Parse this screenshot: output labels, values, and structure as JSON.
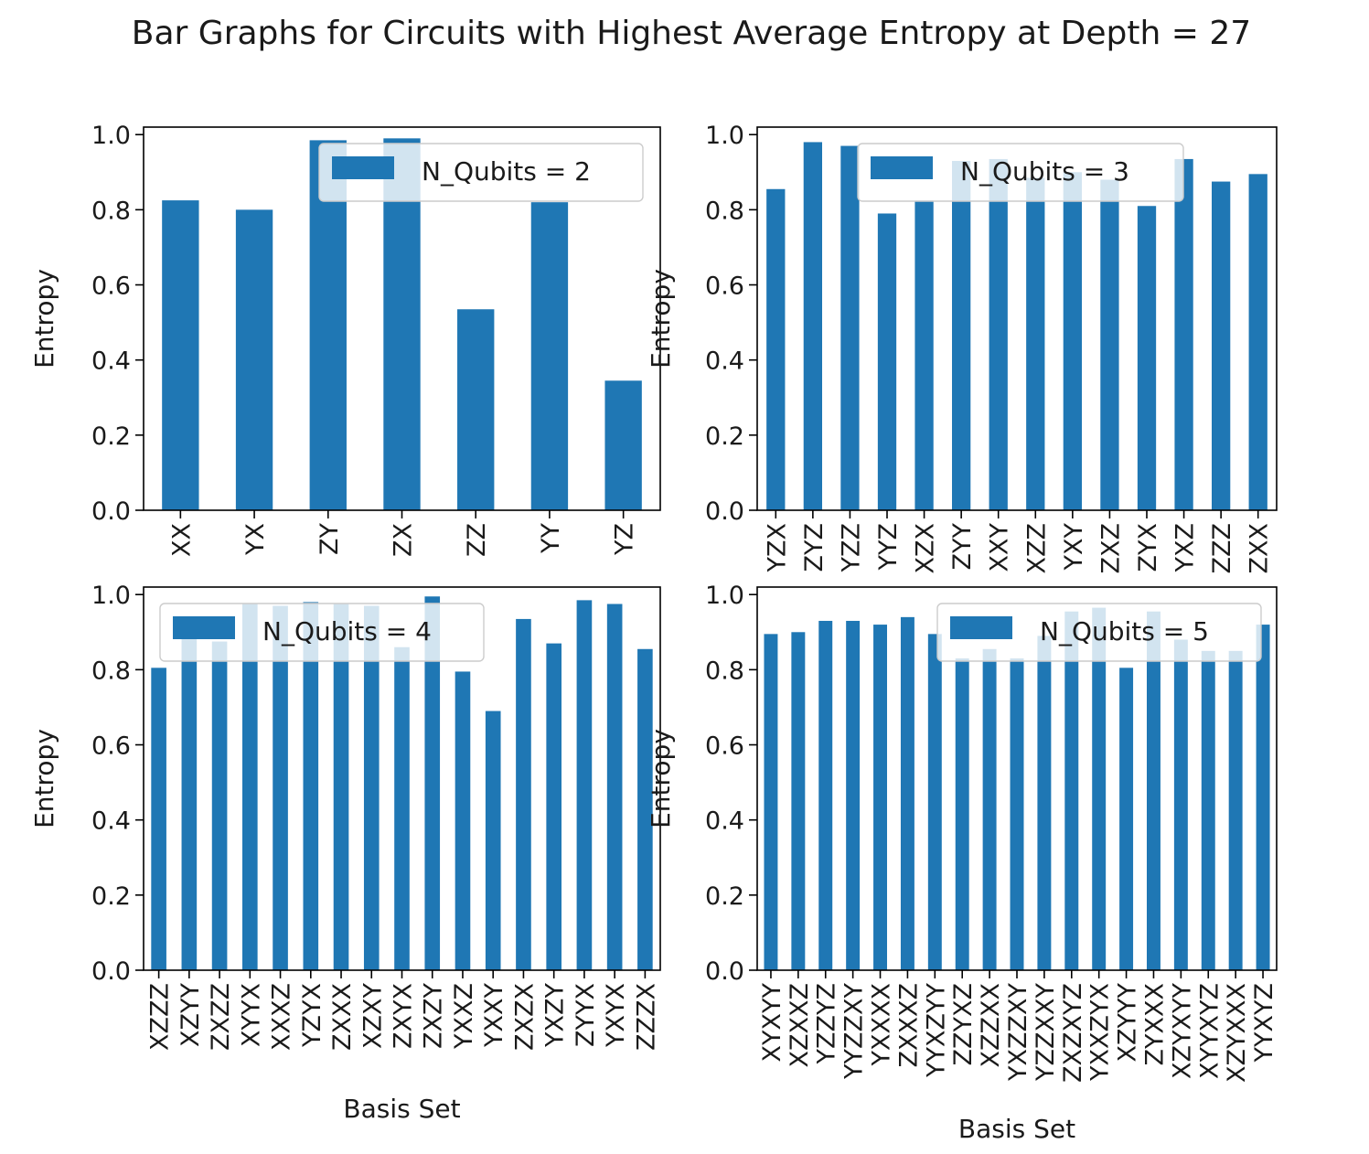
{
  "figure": {
    "title": "Bar Graphs for Circuits with Highest Average Entropy at Depth = 27",
    "bar_color": "#1f77b4"
  },
  "chart_data": [
    {
      "type": "bar",
      "title": "",
      "xlabel": "",
      "ylabel": "Entropy",
      "ylim": [
        0,
        1.02
      ],
      "yticks": [
        "0.0",
        "0.2",
        "0.4",
        "0.6",
        "0.8",
        "1.0"
      ],
      "legend": {
        "label": "N_Qubits = 2",
        "placement": "upper right"
      },
      "categories": [
        "XX",
        "YX",
        "ZY",
        "ZX",
        "ZZ",
        "YY",
        "YZ"
      ],
      "values": [
        0.825,
        0.8,
        0.985,
        0.99,
        0.535,
        0.82,
        0.345
      ]
    },
    {
      "type": "bar",
      "title": "",
      "xlabel": "",
      "ylabel": "Entropy",
      "ylim": [
        0,
        1.02
      ],
      "yticks": [
        "0.0",
        "0.2",
        "0.4",
        "0.6",
        "0.8",
        "1.0"
      ],
      "legend": {
        "label": "N_Qubits = 3",
        "placement": "upper center"
      },
      "categories": [
        "YZX",
        "ZYZ",
        "YZZ",
        "YYZ",
        "XZX",
        "ZYY",
        "XXY",
        "XZZ",
        "YXY",
        "ZXZ",
        "ZYX",
        "YXZ",
        "ZZZ",
        "ZXX"
      ],
      "values": [
        0.855,
        0.98,
        0.97,
        0.79,
        0.825,
        0.93,
        0.935,
        0.885,
        0.9,
        0.88,
        0.81,
        0.935,
        0.875,
        0.895
      ]
    },
    {
      "type": "bar",
      "title": "",
      "xlabel": "Basis Set",
      "ylabel": "Entropy",
      "ylim": [
        0,
        1.02
      ],
      "yticks": [
        "0.0",
        "0.2",
        "0.4",
        "0.6",
        "0.8",
        "1.0"
      ],
      "legend": {
        "label": "N_Qubits = 4",
        "placement": "upper left"
      },
      "categories": [
        "XZZZ",
        "XZYY",
        "ZXZZ",
        "XYYX",
        "XXXZ",
        "YZYX",
        "ZXXX",
        "XZXY",
        "ZXYX",
        "ZXZY",
        "YXXZ",
        "YXXY",
        "ZXZX",
        "YXZY",
        "ZYYX",
        "YXYX",
        "ZZZX"
      ],
      "values": [
        0.805,
        0.91,
        0.875,
        0.975,
        0.97,
        0.98,
        0.975,
        0.97,
        0.86,
        0.995,
        0.795,
        0.69,
        0.935,
        0.87,
        0.985,
        0.975,
        0.855
      ]
    },
    {
      "type": "bar",
      "title": "",
      "xlabel": "Basis Set",
      "ylabel": "Entropy",
      "ylim": [
        0,
        1.02
      ],
      "yticks": [
        "0.0",
        "0.2",
        "0.4",
        "0.6",
        "0.8",
        "1.0"
      ],
      "legend": {
        "label": "N_Qubits = 5",
        "placement": "upper right"
      },
      "categories": [
        "XYXYY",
        "XZXXZ",
        "YZZYZ",
        "YYZZXY",
        "YXXXX",
        "ZXXXZ",
        "YYXZYY",
        "ZZYXZ",
        "XZZXX",
        "YXZZXY",
        "YZZXXY",
        "ZXZXYZ",
        "YXXZYX",
        "XZYYY",
        "ZYXXX",
        "XZYXYY",
        "XYYXYZ",
        "XZYXXX",
        "YYXYZ"
      ],
      "values": [
        0.895,
        0.9,
        0.93,
        0.93,
        0.92,
        0.94,
        0.895,
        0.83,
        0.855,
        0.83,
        0.89,
        0.955,
        0.965,
        0.805,
        0.955,
        0.88,
        0.85,
        0.85,
        0.92
      ]
    }
  ]
}
